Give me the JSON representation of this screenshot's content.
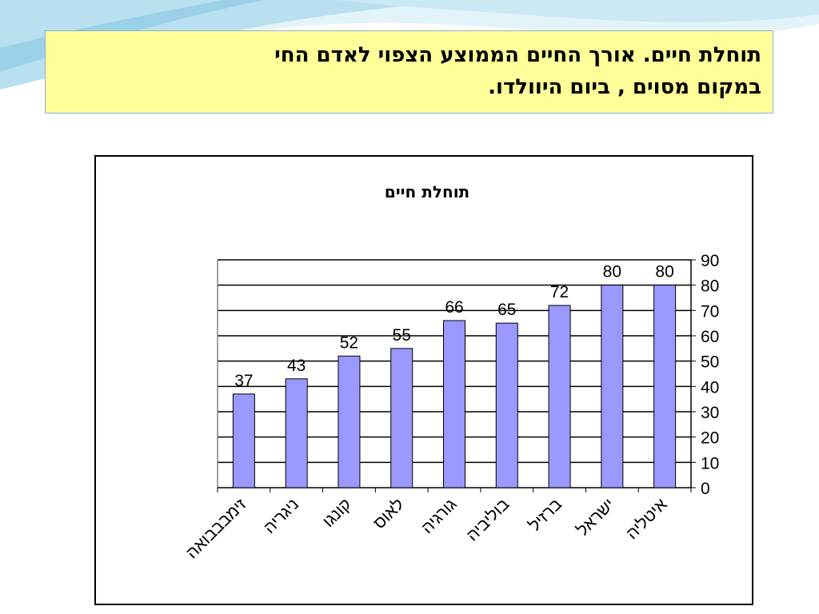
{
  "slide": {
    "heading_line1": "תוחלת חיים. אורך החיים הממוצע הצפוי לאדם החי",
    "heading_line2": "במקום מסוים , ביום היוולדו."
  },
  "colors": {
    "bar_fill": "#9999ff",
    "bar_stroke": "#000000",
    "title_box_bg": "#ffff99",
    "wave_light": "#d6eef7",
    "wave_dark": "#9fd0e6"
  },
  "chart_data": {
    "type": "bar",
    "title": "תוחלת חיים",
    "categories": [
      "זימבבבואה",
      "ניגריה",
      "קונגו",
      "לאוס",
      "גורגיה",
      "בוליביה",
      "ברזיל",
      "ישראל",
      "איטליה"
    ],
    "values": [
      37,
      43,
      52,
      55,
      66,
      65,
      72,
      80,
      80
    ],
    "ylim": [
      0,
      90
    ],
    "y_ticks": [
      0,
      10,
      20,
      30,
      40,
      50,
      60,
      70,
      80,
      90
    ],
    "y_axis_side": "right",
    "gridlines": true,
    "legend": "none",
    "data_labels": true,
    "xlabel": "",
    "ylabel": ""
  }
}
